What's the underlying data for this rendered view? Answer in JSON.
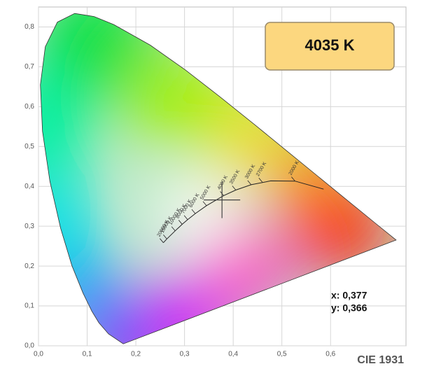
{
  "chart_data": {
    "type": "chromaticity",
    "xlim": [
      0,
      0.755
    ],
    "ylim": [
      0,
      0.85
    ],
    "grid": true,
    "xticks": [
      {
        "value": 0,
        "label": "0,0"
      },
      {
        "value": 0.1,
        "label": "0,1"
      },
      {
        "value": 0.2,
        "label": "0,2"
      },
      {
        "value": 0.3,
        "label": "0,3"
      },
      {
        "value": 0.4,
        "label": "0,4"
      },
      {
        "value": 0.5,
        "label": "0,5"
      },
      {
        "value": 0.6,
        "label": "0,6"
      }
    ],
    "yticks": [
      {
        "value": 0,
        "label": "0,0"
      },
      {
        "value": 0.1,
        "label": "0,1"
      },
      {
        "value": 0.2,
        "label": "0,2"
      },
      {
        "value": 0.3,
        "label": "0,3"
      },
      {
        "value": 0.4,
        "label": "0,4"
      },
      {
        "value": 0.5,
        "label": "0,5"
      },
      {
        "value": 0.6,
        "label": "0,6"
      },
      {
        "value": 0.7,
        "label": "0,7"
      },
      {
        "value": 0.8,
        "label": "0,8"
      }
    ],
    "spectral_locus": {
      "x": [
        0.1741,
        0.144,
        0.1241,
        0.1096,
        0.0913,
        0.0687,
        0.0454,
        0.0235,
        0.0082,
        0.0039,
        0.0139,
        0.0389,
        0.0743,
        0.1142,
        0.1547,
        0.2296,
        0.3016,
        0.3731,
        0.4441,
        0.5125,
        0.5752,
        0.627,
        0.6915,
        0.7347
      ],
      "y": [
        0.005,
        0.0297,
        0.0578,
        0.0868,
        0.1327,
        0.2007,
        0.295,
        0.4127,
        0.5384,
        0.6548,
        0.7502,
        0.812,
        0.8338,
        0.8262,
        0.8059,
        0.7543,
        0.6923,
        0.6245,
        0.5547,
        0.4866,
        0.4242,
        0.3725,
        0.3083,
        0.2653
      ]
    },
    "planckian_locus": {
      "x": [
        0.5857,
        0.5269,
        0.477,
        0.4369,
        0.4053,
        0.3805,
        0.3451,
        0.3221,
        0.3064,
        0.2952,
        0.2807,
        0.2637,
        0.2565
      ],
      "y": [
        0.3931,
        0.4133,
        0.4137,
        0.4041,
        0.3907,
        0.3768,
        0.3516,
        0.3318,
        0.3166,
        0.3048,
        0.2884,
        0.2681,
        0.2587
      ]
    },
    "cct_marks": [
      {
        "label": "2000 K",
        "x": 0.5269,
        "y": 0.4133
      },
      {
        "label": "2700 K",
        "x": 0.4599,
        "y": 0.4106
      },
      {
        "label": "3000 K",
        "x": 0.4369,
        "y": 0.4041
      },
      {
        "label": "3500 K",
        "x": 0.4053,
        "y": 0.3907
      },
      {
        "label": "4000 K",
        "x": 0.3805,
        "y": 0.3768
      },
      {
        "label": "5000 K",
        "x": 0.3451,
        "y": 0.3516
      },
      {
        "label": "6000 K",
        "x": 0.3221,
        "y": 0.3318
      },
      {
        "label": "7000 K",
        "x": 0.3064,
        "y": 0.3166
      },
      {
        "label": "8000 K",
        "x": 0.2952,
        "y": 0.3048
      },
      {
        "label": "10000 K",
        "x": 0.2807,
        "y": 0.2884
      },
      {
        "label": "15000 K",
        "x": 0.2637,
        "y": 0.2681
      },
      {
        "label": "20000 K",
        "x": 0.2565,
        "y": 0.2587
      }
    ],
    "point": {
      "x": 0.377,
      "y": 0.366,
      "x_label": "x: 0,377",
      "y_label": "y: 0,366"
    },
    "cct_label": "4035 K",
    "caption": "CIE 1931"
  }
}
